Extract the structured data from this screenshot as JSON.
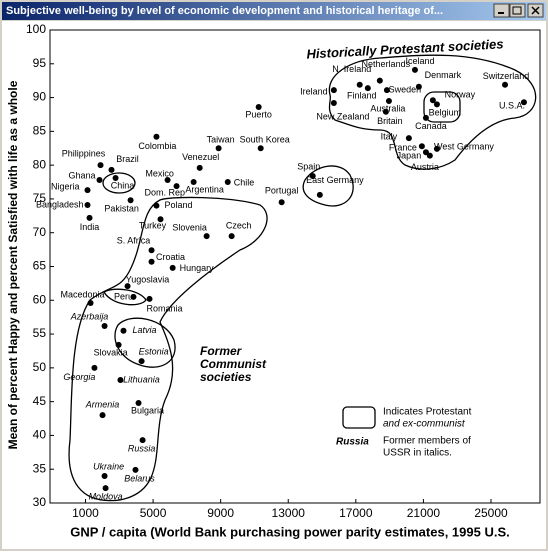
{
  "window_title": "Subjective well-being by level of economic development and historical heritage of...",
  "chart_data": {
    "type": "scatter",
    "xlabel": "GNP / capita (World Bank purchasing power parity estimates, 1995 U.S.",
    "ylabel": "Mean of percent Happy and percent Satisfied with life as a whole",
    "xlim": [
      -1100,
      27900
    ],
    "ylim": [
      30,
      100
    ],
    "xticks": [
      1000,
      5000,
      9000,
      13000,
      17000,
      21000,
      25000
    ],
    "yticks": [
      30,
      35,
      40,
      45,
      50,
      55,
      60,
      65,
      70,
      75,
      80,
      85,
      90,
      95,
      100
    ],
    "color": "#000000",
    "points": [
      {
        "label": "Philippines",
        "x": 1890,
        "y": 80.0
      },
      {
        "label": "Brazil",
        "x": 2540,
        "y": 79.3
      },
      {
        "label": "Ghana",
        "x": 1830,
        "y": 77.8
      },
      {
        "label": "China",
        "x": 2780,
        "y": 78.1
      },
      {
        "label": "Nigeria",
        "x": 1120,
        "y": 76.3
      },
      {
        "label": "Bangladesh",
        "x": 1120,
        "y": 74.1
      },
      {
        "label": "India",
        "x": 1240,
        "y": 72.2
      },
      {
        "label": "Pakistan",
        "x": 3670,
        "y": 74.8
      },
      {
        "label": "Colombia",
        "x": 5200,
        "y": 84.2
      },
      {
        "label": "Mexico",
        "x": 5860,
        "y": 77.8
      },
      {
        "label": "Dom. Rep",
        "x": 6390,
        "y": 76.9
      },
      {
        "label": "Argentina",
        "x": 7400,
        "y": 77.5
      },
      {
        "label": "Venezuel",
        "x": 7760,
        "y": 79.6
      },
      {
        "label": "Chile",
        "x": 9420,
        "y": 77.5
      },
      {
        "label": "Taiwan",
        "x": 8880,
        "y": 82.5
      },
      {
        "label": "South Korea",
        "x": 11370,
        "y": 82.5
      },
      {
        "label": "Puerto",
        "x": 11250,
        "y": 88.6
      },
      {
        "label": "Portugal",
        "x": 12610,
        "y": 74.5
      },
      {
        "label": "Spain",
        "x": 14450,
        "y": 78.4
      },
      {
        "label": "East Germany",
        "x": 14870,
        "y": 75.6
      },
      {
        "label": "Poland",
        "x": 5200,
        "y": 74.0
      },
      {
        "label": "Turkey",
        "x": 5440,
        "y": 72.0
      },
      {
        "label": "S. Africa",
        "x": 4910,
        "y": 67.4
      },
      {
        "label": "Croatia",
        "x": 4910,
        "y": 65.7
      },
      {
        "label": "Hungary",
        "x": 6160,
        "y": 64.8
      },
      {
        "label": "Slovenia",
        "x": 8170,
        "y": 69.5
      },
      {
        "label": "Czech",
        "x": 9650,
        "y": 69.5
      },
      {
        "label": "Yugoslavia",
        "x": 3490,
        "y": 62.1
      },
      {
        "label": "Peru",
        "x": 3840,
        "y": 60.5
      },
      {
        "label": "Romania",
        "x": 4790,
        "y": 60.2
      },
      {
        "label": "Macedonia",
        "x": 1300,
        "y": 59.6
      },
      {
        "label": "Azerbaija",
        "x": 2130,
        "y": 56.2
      },
      {
        "label": "Latvia",
        "x": 3250,
        "y": 55.5
      },
      {
        "label": "Slovakia",
        "x": 2960,
        "y": 53.4
      },
      {
        "label": "Estonia",
        "x": 4320,
        "y": 51.0
      },
      {
        "label": "Georgia",
        "x": 1530,
        "y": 50.0
      },
      {
        "label": "Lithuania",
        "x": 3070,
        "y": 48.2
      },
      {
        "label": "Armenia",
        "x": 2010,
        "y": 43.0
      },
      {
        "label": "Bulgaria",
        "x": 4140,
        "y": 44.8
      },
      {
        "label": "Russia",
        "x": 4380,
        "y": 39.3
      },
      {
        "label": "Ukraine",
        "x": 2130,
        "y": 34.0
      },
      {
        "label": "Belarus",
        "x": 3960,
        "y": 34.9
      },
      {
        "label": "Moldova",
        "x": 2190,
        "y": 32.2
      },
      {
        "label": "Ireland",
        "x": 15700,
        "y": 91.1
      },
      {
        "label": "N. Ireland",
        "x": 17230,
        "y": 91.9
      },
      {
        "label": "Netherlands",
        "x": 18420,
        "y": 92.5
      },
      {
        "label": "Finland",
        "x": 17710,
        "y": 91.4
      },
      {
        "label": "Sweden",
        "x": 18840,
        "y": 91.1
      },
      {
        "label": "Iceland",
        "x": 20500,
        "y": 94.1
      },
      {
        "label": "Denmark",
        "x": 20730,
        "y": 91.6
      },
      {
        "label": "Norway",
        "x": 21800,
        "y": 89.0
      },
      {
        "label": "Switzerland",
        "x": 25830,
        "y": 91.9
      },
      {
        "label": "U.S.A.",
        "x": 26950,
        "y": 89.3
      },
      {
        "label": "Belgium",
        "x": 21560,
        "y": 89.6
      },
      {
        "label": "Australia",
        "x": 18960,
        "y": 89.5
      },
      {
        "label": "Britain",
        "x": 18780,
        "y": 87.9
      },
      {
        "label": "New Zealand",
        "x": 15700,
        "y": 89.2
      },
      {
        "label": "Canada",
        "x": 21150,
        "y": 87.0
      },
      {
        "label": "Italy",
        "x": 20140,
        "y": 84.0
      },
      {
        "label": "France",
        "x": 20910,
        "y": 82.8
      },
      {
        "label": "Japan",
        "x": 21150,
        "y": 81.9
      },
      {
        "label": "West Germany",
        "x": 21800,
        "y": 82.4
      },
      {
        "label": "Austria",
        "x": 21380,
        "y": 81.4
      }
    ],
    "annotations": [
      "Historically Protestant societies",
      "Former",
      "Communist",
      "societies"
    ],
    "legend": [
      "Indicates Protestant",
      "and ex-communist",
      "Russia",
      "Former members of",
      "USSR in italics."
    ]
  }
}
